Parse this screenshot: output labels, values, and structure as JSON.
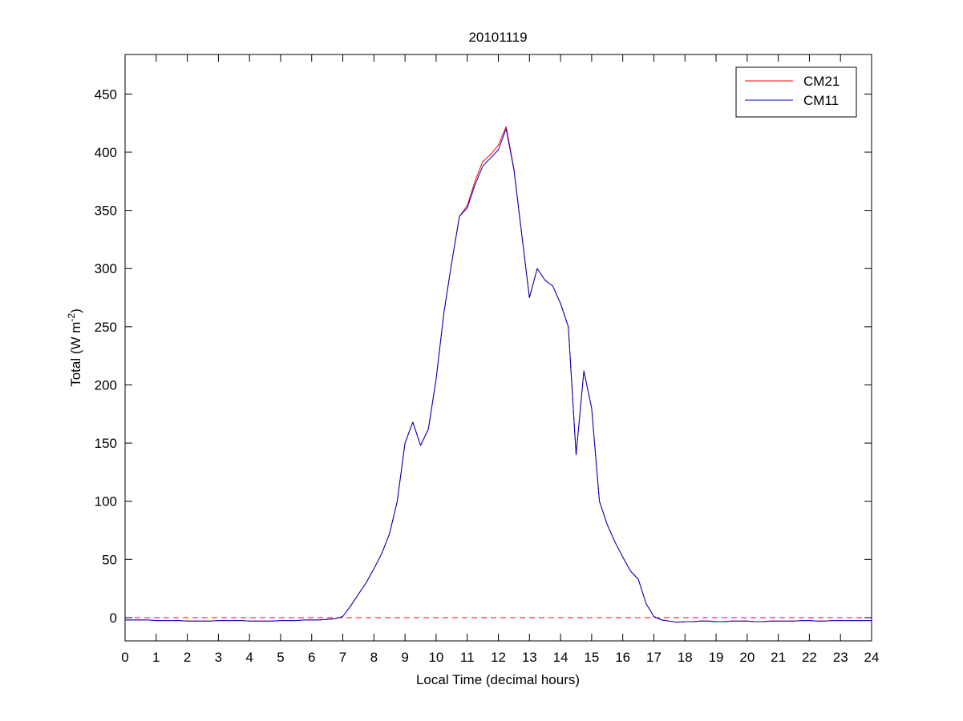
{
  "chart_data": {
    "type": "line",
    "title": "20101119",
    "xlabel": "Local Time (decimal hours)",
    "ylabel": {
      "text": "Total (W m",
      "superscript": "-2",
      "suffix": ")"
    },
    "x": [
      0,
      0.25,
      0.5,
      0.75,
      1,
      1.25,
      1.5,
      1.75,
      2,
      2.25,
      2.5,
      2.75,
      3,
      3.25,
      3.5,
      3.75,
      4,
      4.25,
      4.5,
      4.75,
      5,
      5.25,
      5.5,
      5.75,
      6,
      6.25,
      6.5,
      6.75,
      7,
      7.25,
      7.5,
      7.75,
      8,
      8.25,
      8.5,
      8.75,
      9,
      9.25,
      9.5,
      9.75,
      10,
      10.25,
      10.5,
      10.75,
      11,
      11.25,
      11.5,
      11.75,
      12,
      12.25,
      12.5,
      12.75,
      13,
      13.25,
      13.5,
      13.75,
      14,
      14.25,
      14.5,
      14.75,
      15,
      15.25,
      15.5,
      15.75,
      16,
      16.25,
      16.5,
      16.75,
      17,
      17.25,
      17.5,
      17.75,
      18,
      18.25,
      18.5,
      18.75,
      19,
      19.25,
      19.5,
      19.75,
      20,
      20.25,
      20.5,
      20.75,
      21,
      21.25,
      21.5,
      21.75,
      22,
      22.25,
      22.5,
      22.75,
      23,
      23.25,
      23.5,
      23.75,
      24
    ],
    "series": [
      {
        "name": "CM21",
        "color": "#ff0000",
        "values": [
          -2,
          -2,
          -2,
          -2,
          -2.5,
          -2.5,
          -2.5,
          -2.5,
          -3,
          -3,
          -3,
          -3,
          -2.5,
          -2.5,
          -2.5,
          -2.5,
          -3,
          -3,
          -3,
          -3,
          -2.5,
          -2.5,
          -2.5,
          -2,
          -2,
          -2,
          -1.5,
          -1,
          1,
          10,
          20,
          30,
          42,
          55,
          72,
          100,
          150,
          168,
          148,
          162,
          205,
          262,
          305,
          345,
          354,
          375,
          392,
          398,
          406,
          422,
          386,
          330,
          275,
          300,
          290,
          285,
          270,
          250,
          140,
          212,
          180,
          100,
          80,
          65,
          52,
          40,
          33,
          12,
          1,
          -2,
          -3,
          -4,
          -3.5,
          -3.5,
          -3,
          -3,
          -3.5,
          -3.5,
          -3,
          -3,
          -3,
          -3.5,
          -3.5,
          -3,
          -3,
          -3,
          -3,
          -2.5,
          -2.5,
          -3,
          -3,
          -2.5,
          -2.5,
          -2.5,
          -2.5,
          -2.5,
          -2.5
        ]
      },
      {
        "name": "CM11",
        "color": "#0000cc",
        "values": [
          -2,
          -2,
          -2,
          -2,
          -2.5,
          -2.5,
          -2.5,
          -2.5,
          -3,
          -3,
          -3,
          -3,
          -2.5,
          -2.5,
          -2.5,
          -2.5,
          -3,
          -3,
          -3,
          -3,
          -2.5,
          -2.5,
          -2.5,
          -2,
          -2,
          -2,
          -1.5,
          -1,
          1,
          10,
          20,
          30,
          42,
          55,
          72,
          100,
          150,
          168,
          148,
          162,
          205,
          262,
          305,
          345,
          352,
          372,
          388,
          395,
          402,
          420,
          385,
          330,
          275,
          300,
          290,
          285,
          270,
          250,
          140,
          212,
          180,
          100,
          80,
          65,
          52,
          40,
          33,
          12,
          1,
          -2,
          -3,
          -4,
          -3.5,
          -3.5,
          -3,
          -3,
          -3.5,
          -3.5,
          -3,
          -3,
          -3,
          -3.5,
          -3.5,
          -3,
          -3,
          -3,
          -3,
          -2.5,
          -2.5,
          -3,
          -3,
          -2.5,
          -2.5,
          -2.5,
          -2.5,
          -2.5,
          -2.5
        ]
      }
    ],
    "reference_line": {
      "y": 0,
      "color": "#ff0000",
      "style": "dashed"
    },
    "xlim": [
      0,
      24
    ],
    "xticks": [
      0,
      1,
      2,
      3,
      4,
      5,
      6,
      7,
      8,
      9,
      10,
      11,
      12,
      13,
      14,
      15,
      16,
      17,
      18,
      19,
      20,
      21,
      22,
      23,
      24
    ],
    "ylim": [
      -20,
      484
    ],
    "yticks": [
      0,
      50,
      100,
      150,
      200,
      250,
      300,
      350,
      400,
      450
    ],
    "legend": "northeast",
    "grid": false
  }
}
